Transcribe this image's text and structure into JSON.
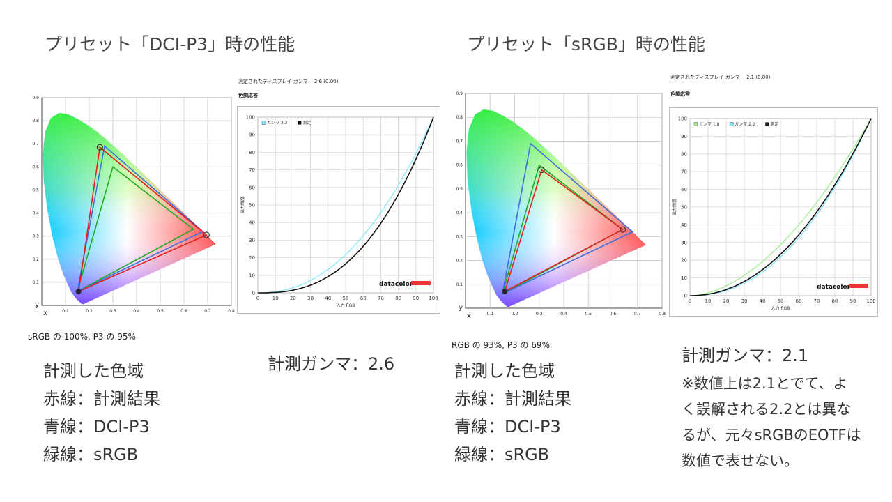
{
  "left": {
    "title": "プリセット「DCI-P3」時の性能",
    "gamut_caption": "sRGB の 100%, P3 の 95%",
    "gamut_notes": [
      "計測した色域",
      "赤線：計測結果",
      "青線：DCI-P3",
      "緑線：sRGB"
    ],
    "gamma_heading": "測定されたディスプレイ ガンマ： 2.6 (0.00)",
    "gamma_subheading": "色調応答",
    "gamma_note": "計測ガンマ：2.6"
  },
  "right": {
    "title": "プリセット「sRGB」時の性能",
    "gamut_caption": "RGB の 93%, P3 の 69%",
    "gamut_notes": [
      "計測した色域",
      "赤線：計測結果",
      "青線：DCI-P3",
      "緑線：sRGB"
    ],
    "gamma_heading": "測定されたディスプレイ ガンマ： 2.1 (0.00)",
    "gamma_subheading": "色調応答",
    "gamma_note": "計測ガンマ：2.1",
    "gamma_remarks": [
      "※数値上は2.1とでて、よ",
      "く誤解される2.2とは異な",
      "るが、元々sRGBのEOTFは",
      "数値で表せない。"
    ]
  },
  "chart_data": [
    {
      "type": "scatter",
      "title": "",
      "xlabel": "x",
      "ylabel": "y",
      "xlim": [
        0,
        0.8
      ],
      "ylim": [
        0,
        0.9
      ],
      "x_ticks": [
        "0.1",
        "0.2",
        "0.3",
        "0.4",
        "0.5",
        "0.6",
        "0.7",
        "0.8"
      ],
      "y_ticks": [
        "0.1",
        "0.2",
        "0.3",
        "0.4",
        "0.5",
        "0.6",
        "0.7",
        "0.8",
        "0.9"
      ],
      "grid": true,
      "series": [
        {
          "name": "計測結果",
          "color": "#e02020",
          "points": [
            [
              0.695,
              0.305
            ],
            [
              0.245,
              0.685
            ],
            [
              0.155,
              0.06
            ]
          ]
        },
        {
          "name": "DCI-P3",
          "color": "#3f6fd8",
          "points": [
            [
              0.68,
              0.32
            ],
            [
              0.265,
              0.69
            ],
            [
              0.15,
              0.06
            ]
          ]
        },
        {
          "name": "sRGB",
          "color": "#22aa22",
          "points": [
            [
              0.64,
              0.33
            ],
            [
              0.3,
              0.6
            ],
            [
              0.15,
              0.06
            ]
          ]
        }
      ]
    },
    {
      "type": "line",
      "title": "",
      "xlabel": "入力 RGB",
      "ylabel": "出力輝度",
      "xlim": [
        0,
        100
      ],
      "ylim": [
        0,
        100
      ],
      "x_ticks": [
        "0",
        "10",
        "20",
        "30",
        "40",
        "50",
        "60",
        "70",
        "80",
        "90",
        "100"
      ],
      "y_ticks": [
        "0",
        "10",
        "20",
        "30",
        "40",
        "50",
        "60",
        "70",
        "80",
        "90",
        "100"
      ],
      "legend_position": "top-left",
      "brand": "datacolor",
      "series": [
        {
          "name": "ガンマ 2.2",
          "color": "#7fe6ff",
          "gamma": 2.2
        },
        {
          "name": "測定",
          "color": "#111111",
          "gamma": 2.6
        }
      ]
    },
    {
      "type": "scatter",
      "title": "",
      "xlabel": "x",
      "ylabel": "y",
      "xlim": [
        0,
        0.8
      ],
      "ylim": [
        0,
        0.9
      ],
      "x_ticks": [
        "0.1",
        "0.2",
        "0.3",
        "0.4",
        "0.5",
        "0.6",
        "0.7",
        "0.8"
      ],
      "y_ticks": [
        "0.1",
        "0.2",
        "0.3",
        "0.4",
        "0.5",
        "0.6",
        "0.7",
        "0.8",
        "0.9"
      ],
      "grid": true,
      "series": [
        {
          "name": "計測結果",
          "color": "#e02020",
          "points": [
            [
              0.64,
              0.33
            ],
            [
              0.31,
              0.58
            ],
            [
              0.16,
              0.07
            ]
          ]
        },
        {
          "name": "DCI-P3",
          "color": "#3f6fd8",
          "points": [
            [
              0.68,
              0.32
            ],
            [
              0.265,
              0.69
            ],
            [
              0.15,
              0.06
            ]
          ]
        },
        {
          "name": "sRGB",
          "color": "#22aa22",
          "points": [
            [
              0.64,
              0.33
            ],
            [
              0.3,
              0.6
            ],
            [
              0.15,
              0.06
            ]
          ]
        }
      ]
    },
    {
      "type": "line",
      "title": "",
      "xlabel": "入力 RGB",
      "ylabel": "出力輝度",
      "xlim": [
        0,
        100
      ],
      "ylim": [
        0,
        100
      ],
      "x_ticks": [
        "0",
        "10",
        "20",
        "30",
        "40",
        "50",
        "60",
        "70",
        "80",
        "90",
        "100"
      ],
      "y_ticks": [
        "0",
        "10",
        "20",
        "30",
        "40",
        "50",
        "60",
        "70",
        "80",
        "90",
        "100"
      ],
      "legend_position": "top-left",
      "brand": "datacolor",
      "series": [
        {
          "name": "ガンマ 1.8",
          "color": "#99ee88",
          "gamma": 1.8
        },
        {
          "name": "ガンマ 2.2",
          "color": "#7fe6ff",
          "gamma": 2.2
        },
        {
          "name": "測定",
          "color": "#111111",
          "gamma": 2.1
        }
      ]
    }
  ]
}
